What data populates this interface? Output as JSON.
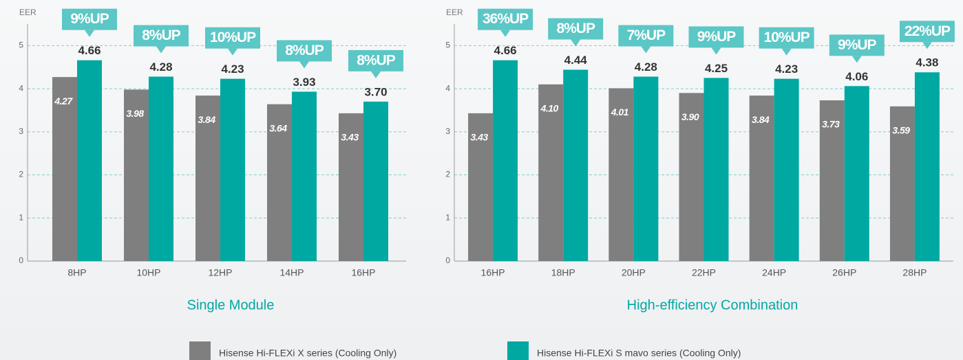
{
  "chart_data": [
    {
      "type": "bar",
      "title": "Single Module",
      "y_label": "EER",
      "categories": [
        "8HP",
        "10HP",
        "12HP",
        "14HP",
        "16HP"
      ],
      "series": [
        {
          "color": "#7f7f7f",
          "values": [
            4.27,
            3.98,
            3.84,
            3.64,
            3.43
          ],
          "value_labels": [
            "4.27",
            "3.98",
            "3.84",
            "3.64",
            "3.43"
          ]
        },
        {
          "color": "#00a8a2",
          "values": [
            4.66,
            4.28,
            4.23,
            3.93,
            3.7
          ],
          "value_labels": [
            "4.66",
            "4.28",
            "4.23",
            "3.93",
            "3.70"
          ]
        }
      ],
      "annotations": [
        "9%UP",
        "8%UP",
        "10%UP",
        "8%UP",
        "8%UP"
      ],
      "ylim": [
        0,
        5.5
      ],
      "yticks": [
        0,
        1,
        2,
        3,
        4,
        5
      ],
      "grid": true
    },
    {
      "type": "bar",
      "title": "High-efficiency Combination",
      "y_label": "EER",
      "categories": [
        "16HP",
        "18HP",
        "20HP",
        "22HP",
        "24HP",
        "26HP",
        "28HP"
      ],
      "series": [
        {
          "color": "#7f7f7f",
          "values": [
            3.43,
            4.1,
            4.01,
            3.9,
            3.84,
            3.73,
            3.59
          ],
          "value_labels": [
            "3.43",
            "4.10",
            "4.01",
            "3.90",
            "3.84",
            "3.73",
            "3.59"
          ]
        },
        {
          "color": "#00a8a2",
          "values": [
            4.66,
            4.44,
            4.28,
            4.25,
            4.23,
            4.06,
            4.38
          ],
          "value_labels": [
            "4.66",
            "4.44",
            "4.28",
            "4.25",
            "4.23",
            "4.06",
            "4.38"
          ]
        }
      ],
      "annotations": [
        "36%UP",
        "8%UP",
        "7%UP",
        "9%UP",
        "10%UP",
        "9%UP",
        "22%UP"
      ],
      "ylim": [
        0,
        5.5
      ],
      "yticks": [
        0,
        1,
        2,
        3,
        4,
        5
      ],
      "grid": true
    }
  ],
  "legend": [
    {
      "name": "Hisense Hi-FLEXi X series (Cooling Only)",
      "color": "#7f7f7f"
    },
    {
      "name": "Hisense Hi-FLEXi S mavo series (Cooling Only)",
      "color": "#00a8a2"
    }
  ]
}
